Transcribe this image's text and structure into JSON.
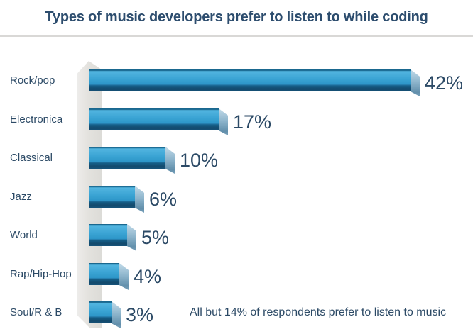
{
  "title": "Types of music developers prefer to listen to while coding",
  "chart_data": {
    "type": "bar",
    "orientation": "horizontal",
    "title": "Types of music developers prefer to listen to while coding",
    "categories": [
      "Rock/pop",
      "Electronica",
      "Classical",
      "Jazz",
      "World",
      "Rap/Hip-Hop",
      "Soul/R & B"
    ],
    "values": [
      42,
      17,
      10,
      6,
      5,
      4,
      3
    ],
    "unit": "%",
    "value_labels": [
      "42%",
      "17%",
      "10%",
      "6%",
      "5%",
      "4%",
      "3%"
    ],
    "annotation": "All but 14% of respondents prefer to listen to music",
    "xlim": [
      0,
      42
    ],
    "grid": false,
    "legend": false,
    "layout_hint": "category labels on left, 3D beveled bars with value labels at right of each bar, gray 3D axis wall strip at baseline",
    "colors": {
      "bar_main": "#2e96c8",
      "bar_highlight": "#52b5e0",
      "bar_shadow": "#134a6d",
      "bar_side_face": "#8fb6cd",
      "axis_wall": "#e3e2de",
      "text": "#2c4a66",
      "divider": "#d9d8d6",
      "background": "#ffffff"
    }
  }
}
